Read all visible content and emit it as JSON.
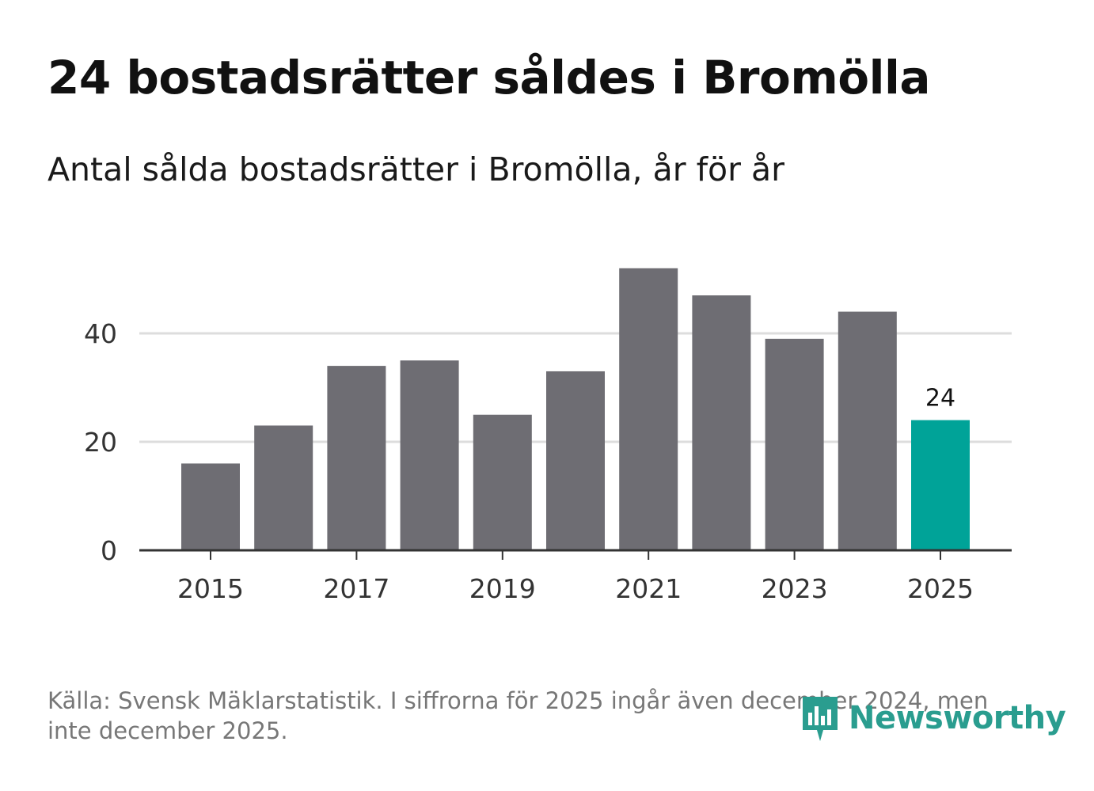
{
  "header": {
    "title": "24 bostadsrätter såldes i Bromölla",
    "subtitle": "Antal sålda bostadsrätter i Bromölla, år för år"
  },
  "footer": {
    "source": "Källa: Svensk Mäklarstatistik. I siffrorna för 2025 ingår även december 2024, men inte december 2025.",
    "brand": "Newsworthy"
  },
  "colors": {
    "bar": "#6e6d73",
    "highlight": "#00a398",
    "grid": "#dddddd",
    "axis": "#333333",
    "brand": "#2a9d8f"
  },
  "chart_data": {
    "type": "bar",
    "title": "24 bostadsrätter såldes i Bromölla",
    "subtitle": "Antal sålda bostadsrätter i Bromölla, år för år",
    "xlabel": "",
    "ylabel": "",
    "categories": [
      "2015",
      "2016",
      "2017",
      "2018",
      "2019",
      "2020",
      "2021",
      "2022",
      "2023",
      "2024",
      "2025"
    ],
    "values": [
      16,
      23,
      34,
      35,
      25,
      33,
      52,
      47,
      39,
      44,
      24
    ],
    "highlight_index": 10,
    "data_labels": [
      {
        "index": 10,
        "text": "24"
      }
    ],
    "ylim": [
      0,
      52
    ],
    "yticks": [
      0,
      20,
      40
    ],
    "xticks": [
      "2015",
      "2017",
      "2019",
      "2021",
      "2023",
      "2025"
    ],
    "grid": true
  }
}
